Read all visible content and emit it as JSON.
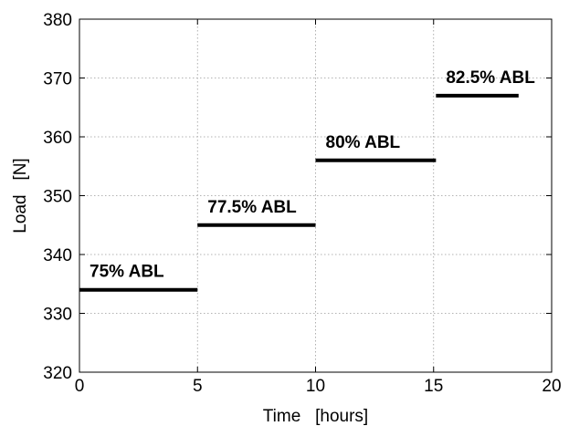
{
  "chart_data": {
    "type": "line",
    "xlabel": "Time   [hours]",
    "ylabel": "Load   [N]",
    "xlim": [
      0,
      20
    ],
    "ylim": [
      320,
      380
    ],
    "xticks": [
      0,
      5,
      10,
      15,
      20
    ],
    "yticks": [
      320,
      330,
      340,
      350,
      360,
      370,
      380
    ],
    "grid": true,
    "segments": [
      {
        "x_start": 0,
        "x_end": 5,
        "y": 334,
        "label": "75% ABL"
      },
      {
        "x_start": 5,
        "x_end": 10,
        "y": 345,
        "label": "77.5% ABL"
      },
      {
        "x_start": 10,
        "x_end": 15.1,
        "y": 356,
        "label": "80% ABL"
      },
      {
        "x_start": 15.1,
        "x_end": 18.6,
        "y": 367,
        "label": "82.5% ABL"
      }
    ]
  }
}
